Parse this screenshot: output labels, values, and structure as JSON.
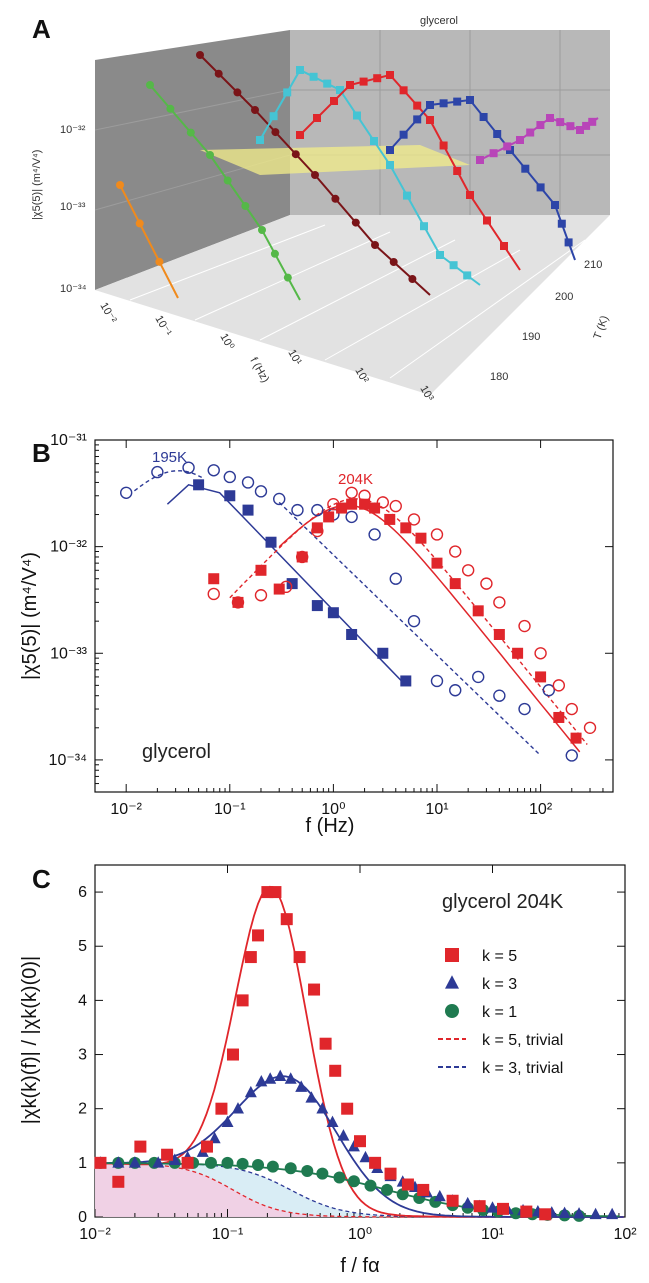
{
  "chart_data": [
    {
      "panel": "A",
      "type": "scatter",
      "title": "glycerol",
      "zlabel": "|χ5(5)| (m⁴/V⁴)",
      "xlabel": "f (Hz)",
      "ylabel": "T (K)",
      "z_ticks": [
        "10⁻³²",
        "10⁻³³",
        "10⁻³⁴"
      ],
      "x_ticks": [
        "10⁻²",
        "10⁻¹",
        "10⁰",
        "10¹",
        "10²",
        "10³"
      ],
      "t_ticks": [
        "210",
        "200",
        "190",
        "180"
      ],
      "series": [
        {
          "name": "T1",
          "color": "#f08a1c",
          "temp_index": 0
        },
        {
          "name": "T2",
          "color": "#55b848",
          "temp_index": 1
        },
        {
          "name": "T3",
          "color": "#7a1418",
          "temp_index": 2
        },
        {
          "name": "T4",
          "color": "#45c4d4",
          "temp_index": 3
        },
        {
          "name": "T5",
          "color": "#e0262b",
          "temp_index": 4
        },
        {
          "name": "T6",
          "color": "#2d45a8",
          "temp_index": 5
        },
        {
          "name": "T7",
          "color": "#b845b8",
          "temp_index": 6
        }
      ]
    },
    {
      "panel": "B",
      "type": "scatter",
      "xlabel": "f (Hz)",
      "ylabel": "|χ5(5)| (m⁴/V⁴)",
      "xscale": "log",
      "yscale": "log",
      "xlim": [
        0.005,
        500
      ],
      "ylim": [
        5e-35,
        1e-31
      ],
      "x_ticks": [
        "10⁻²",
        "10⁻¹",
        "10⁰",
        "10¹",
        "10²"
      ],
      "y_ticks": [
        "10⁻³¹",
        "10⁻³²",
        "10⁻³³",
        "10⁻³⁴"
      ],
      "annotation": "glycerol",
      "label_195": "195K",
      "label_204": "204K",
      "series": [
        {
          "name": "195K open",
          "color": "#2d3a96",
          "marker": "open-circle",
          "x": [
            0.01,
            0.02,
            0.04,
            0.07,
            0.1,
            0.15,
            0.2,
            0.3,
            0.45,
            0.7,
            1.0,
            1.5,
            2.5,
            4.0,
            6.0,
            10,
            15,
            25,
            40,
            70,
            120,
            200
          ],
          "y": [
            3.2e-32,
            5e-32,
            5.5e-32,
            5.2e-32,
            4.5e-32,
            4e-32,
            3.3e-32,
            2.8e-32,
            2.2e-32,
            2.2e-32,
            2e-32,
            1.9e-32,
            1.3e-32,
            5e-33,
            2e-33,
            5.5e-34,
            4.5e-34,
            6e-34,
            4e-34,
            3e-34,
            4.5e-34,
            1.1e-34
          ]
        },
        {
          "name": "195K filled",
          "color": "#2d3a96",
          "marker": "square",
          "x": [
            0.05,
            0.1,
            0.15,
            0.25,
            0.4,
            0.7,
            1.0,
            1.5,
            3.0,
            5.0
          ],
          "y": [
            3.8e-32,
            3e-32,
            2.2e-32,
            1.1e-32,
            4.5e-33,
            2.8e-33,
            2.4e-33,
            1.5e-33,
            1e-33,
            5.5e-34
          ]
        },
        {
          "name": "204K open",
          "color": "#e0262b",
          "marker": "open-circle",
          "x": [
            0.07,
            0.12,
            0.2,
            0.35,
            0.5,
            0.7,
            1.0,
            1.5,
            2.0,
            3.0,
            4.0,
            6.0,
            10,
            15,
            20,
            30,
            40,
            70,
            100,
            150,
            200,
            300
          ],
          "y": [
            3.6e-33,
            3e-33,
            3.5e-33,
            4.2e-33,
            8e-33,
            1.4e-32,
            2.5e-32,
            3.2e-32,
            3e-32,
            2.6e-32,
            2.4e-32,
            1.8e-32,
            1.3e-32,
            9e-33,
            6e-33,
            4.5e-33,
            3e-33,
            1.8e-33,
            1e-33,
            5e-34,
            3e-34,
            2e-34
          ]
        },
        {
          "name": "204K filled",
          "color": "#e0262b",
          "marker": "square",
          "x": [
            0.07,
            0.12,
            0.2,
            0.3,
            0.5,
            0.7,
            0.9,
            1.2,
            1.5,
            2.0,
            2.5,
            3.5,
            5.0,
            7.0,
            10,
            15,
            25,
            40,
            60,
            100,
            150,
            220
          ],
          "y": [
            5e-33,
            3e-33,
            6e-33,
            4e-33,
            8e-33,
            1.5e-32,
            1.9e-32,
            2.3e-32,
            2.5e-32,
            2.5e-32,
            2.3e-32,
            1.8e-32,
            1.5e-32,
            1.2e-32,
            7e-33,
            4.5e-33,
            2.5e-33,
            1.5e-33,
            1e-33,
            6e-34,
            2.5e-34,
            1.6e-34
          ]
        }
      ]
    },
    {
      "panel": "C",
      "type": "scatter",
      "xlabel": "f / fα",
      "ylabel": "|χk(k)(f)| / |χk(k)(0)|",
      "xscale": "log",
      "xlim": [
        0.01,
        100
      ],
      "ylim": [
        0,
        6.5
      ],
      "x_ticks": [
        "10⁻²",
        "10⁻¹",
        "10⁰",
        "10¹",
        "10²"
      ],
      "y_ticks": [
        "0",
        "1",
        "2",
        "3",
        "4",
        "5",
        "6"
      ],
      "annotation": "glycerol  204K",
      "legend": [
        {
          "label": "k = 5",
          "color": "#e0262b",
          "marker": "square"
        },
        {
          "label": "k = 3",
          "color": "#2d3a96",
          "marker": "triangle"
        },
        {
          "label": "k = 1",
          "color": "#1f7a50",
          "marker": "circle"
        },
        {
          "label": "k = 5, trivial",
          "color": "#e0262b",
          "marker": "dash"
        },
        {
          "label": "k = 3, trivial",
          "color": "#2d3a96",
          "marker": "dash"
        }
      ],
      "series": [
        {
          "name": "k = 5",
          "color": "#e0262b",
          "marker": "square",
          "x": [
            0.011,
            0.015,
            0.022,
            0.035,
            0.05,
            0.07,
            0.09,
            0.11,
            0.13,
            0.15,
            0.17,
            0.2,
            0.23,
            0.28,
            0.35,
            0.45,
            0.55,
            0.65,
            0.8,
            1.0,
            1.3,
            1.7,
            2.3,
            3.0,
            5.0,
            8.0,
            12,
            18,
            25
          ],
          "y": [
            1.0,
            0.65,
            1.3,
            1.15,
            1.0,
            1.3,
            2.0,
            3.0,
            4.0,
            4.8,
            5.2,
            6.0,
            6.0,
            5.5,
            4.8,
            4.2,
            3.2,
            2.7,
            2.0,
            1.4,
            1.0,
            0.8,
            0.6,
            0.5,
            0.3,
            0.2,
            0.15,
            0.1,
            0.05
          ]
        },
        {
          "name": "k = 3",
          "color": "#2d3a96",
          "marker": "triangle",
          "x": [
            0.011,
            0.015,
            0.02,
            0.03,
            0.04,
            0.05,
            0.065,
            0.08,
            0.1,
            0.12,
            0.15,
            0.18,
            0.21,
            0.25,
            0.3,
            0.36,
            0.43,
            0.52,
            0.62,
            0.75,
            0.9,
            1.1,
            1.35,
            1.7,
            2.1,
            2.6,
            3.2,
            4.0,
            5.0,
            6.5,
            8.0,
            10,
            13,
            17,
            22,
            28,
            35,
            45,
            60,
            80
          ],
          "y": [
            1.0,
            1.0,
            1.0,
            1.0,
            1.05,
            1.1,
            1.2,
            1.45,
            1.75,
            2.0,
            2.3,
            2.5,
            2.55,
            2.6,
            2.55,
            2.4,
            2.2,
            2.0,
            1.75,
            1.5,
            1.3,
            1.1,
            0.9,
            0.75,
            0.65,
            0.55,
            0.45,
            0.38,
            0.3,
            0.25,
            0.2,
            0.17,
            0.14,
            0.12,
            0.1,
            0.08,
            0.07,
            0.06,
            0.05,
            0.05
          ]
        },
        {
          "name": "k = 1",
          "color": "#1f7a50",
          "marker": "circle",
          "x": [
            0.011,
            0.015,
            0.02,
            0.028,
            0.04,
            0.055,
            0.075,
            0.1,
            0.13,
            0.17,
            0.22,
            0.3,
            0.4,
            0.52,
            0.7,
            0.9,
            1.2,
            1.6,
            2.1,
            2.8,
            3.7,
            5.0,
            6.5,
            8.5,
            11,
            15,
            20,
            26,
            35,
            45
          ],
          "y": [
            1.0,
            1.0,
            1.0,
            1.0,
            1.0,
            1.0,
            1.0,
            1.0,
            0.98,
            0.96,
            0.93,
            0.9,
            0.85,
            0.8,
            0.73,
            0.66,
            0.58,
            0.5,
            0.42,
            0.35,
            0.28,
            0.22,
            0.17,
            0.13,
            0.1,
            0.07,
            0.05,
            0.04,
            0.03,
            0.02
          ]
        }
      ]
    }
  ]
}
